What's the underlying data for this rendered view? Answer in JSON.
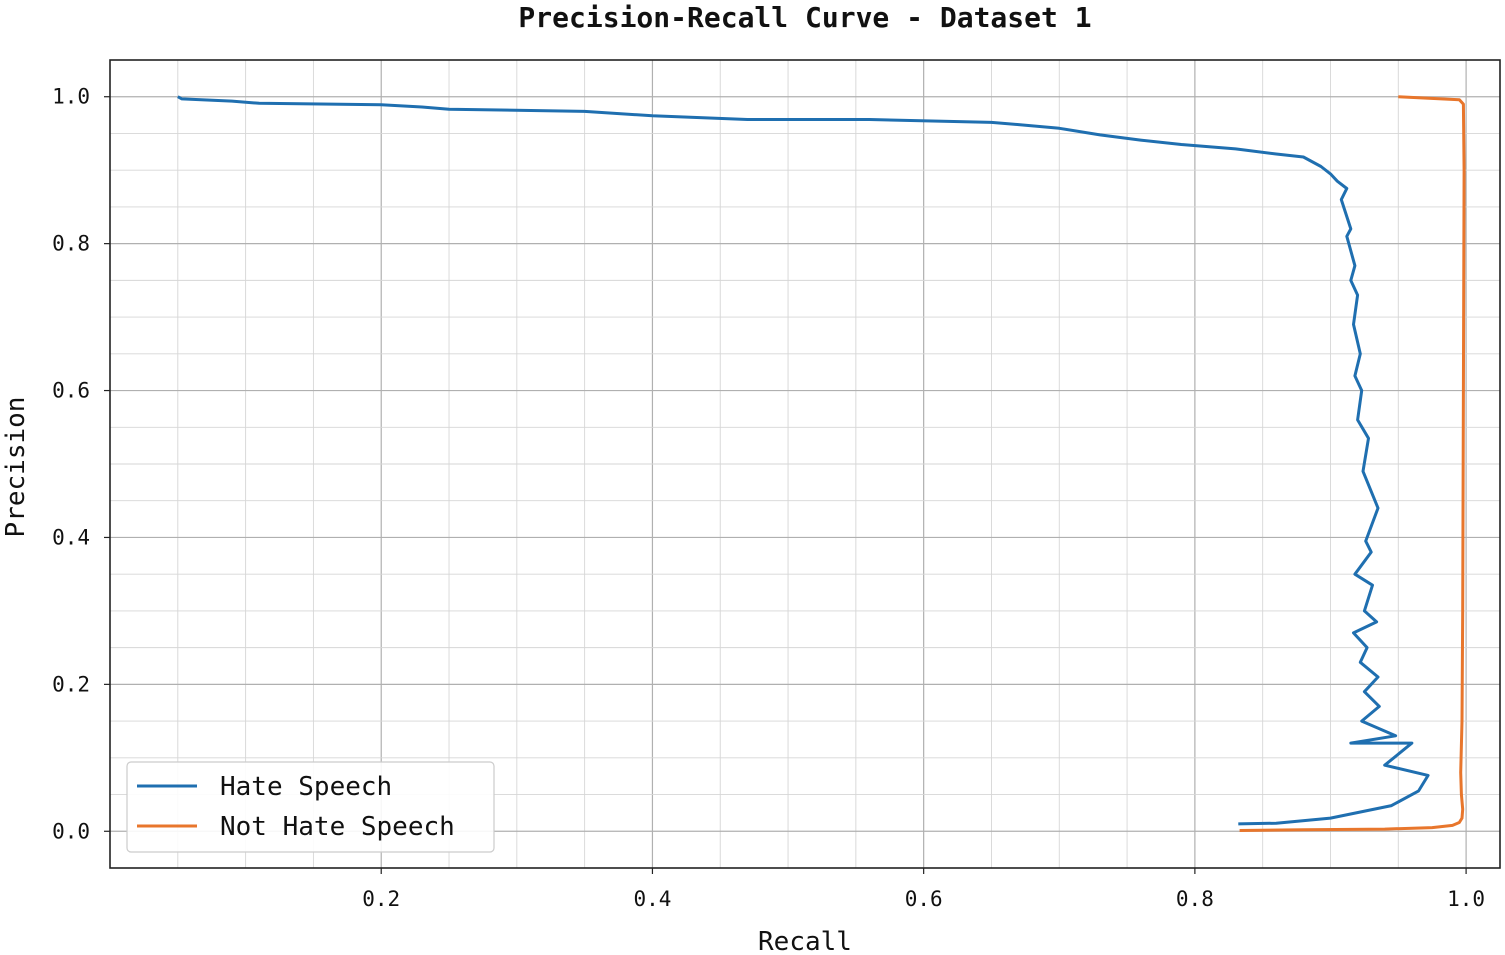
{
  "chart_data": {
    "type": "line",
    "title": "Precision-Recall Curve - Dataset 1",
    "xlabel": "Recall",
    "ylabel": "Precision",
    "xlim": [
      0.0,
      1.025
    ],
    "ylim": [
      -0.05,
      1.05
    ],
    "xticks": [
      0.2,
      0.4,
      0.6,
      0.8,
      1.0
    ],
    "yticks": [
      0.0,
      0.2,
      0.4,
      0.6,
      0.8,
      1.0
    ],
    "grid": true,
    "legend_position": "lower-left",
    "series": [
      {
        "name": "Hate Speech",
        "color": "#1f6fb0",
        "x": [
          0.05,
          0.053,
          0.09,
          0.11,
          0.2,
          0.23,
          0.25,
          0.35,
          0.4,
          0.47,
          0.56,
          0.65,
          0.67,
          0.7,
          0.73,
          0.76,
          0.79,
          0.83,
          0.86,
          0.88,
          0.893,
          0.9,
          0.905,
          0.912,
          0.908,
          0.915,
          0.912,
          0.918,
          0.915,
          0.92,
          0.917,
          0.922,
          0.918,
          0.923,
          0.92,
          0.928,
          0.924,
          0.935,
          0.926,
          0.93,
          0.918,
          0.931,
          0.925,
          0.934,
          0.917,
          0.927,
          0.922,
          0.935,
          0.925,
          0.936,
          0.923,
          0.948,
          0.915,
          0.96,
          0.94,
          0.972,
          0.965,
          0.945,
          0.9,
          0.86,
          0.832
        ],
        "y": [
          1.0,
          0.997,
          0.994,
          0.991,
          0.989,
          0.986,
          0.983,
          0.98,
          0.974,
          0.969,
          0.969,
          0.965,
          0.962,
          0.957,
          0.948,
          0.941,
          0.935,
          0.929,
          0.922,
          0.918,
          0.905,
          0.895,
          0.885,
          0.875,
          0.86,
          0.82,
          0.81,
          0.77,
          0.75,
          0.73,
          0.69,
          0.65,
          0.62,
          0.6,
          0.56,
          0.535,
          0.49,
          0.44,
          0.395,
          0.38,
          0.35,
          0.335,
          0.3,
          0.285,
          0.27,
          0.25,
          0.23,
          0.21,
          0.19,
          0.17,
          0.15,
          0.13,
          0.12,
          0.12,
          0.09,
          0.076,
          0.055,
          0.035,
          0.018,
          0.011,
          0.01
        ]
      },
      {
        "name": "Not Hate Speech",
        "color": "#e8762c",
        "x": [
          0.95,
          0.995,
          0.998,
          0.9985,
          0.998,
          0.9975,
          0.997,
          0.996,
          0.9965,
          0.9975,
          0.997,
          0.995,
          0.99,
          0.975,
          0.94,
          0.88,
          0.833
        ],
        "y": [
          1.0,
          0.996,
          0.99,
          0.9,
          0.6,
          0.3,
          0.15,
          0.08,
          0.05,
          0.03,
          0.018,
          0.012,
          0.008,
          0.005,
          0.003,
          0.002,
          0.001
        ]
      }
    ]
  }
}
